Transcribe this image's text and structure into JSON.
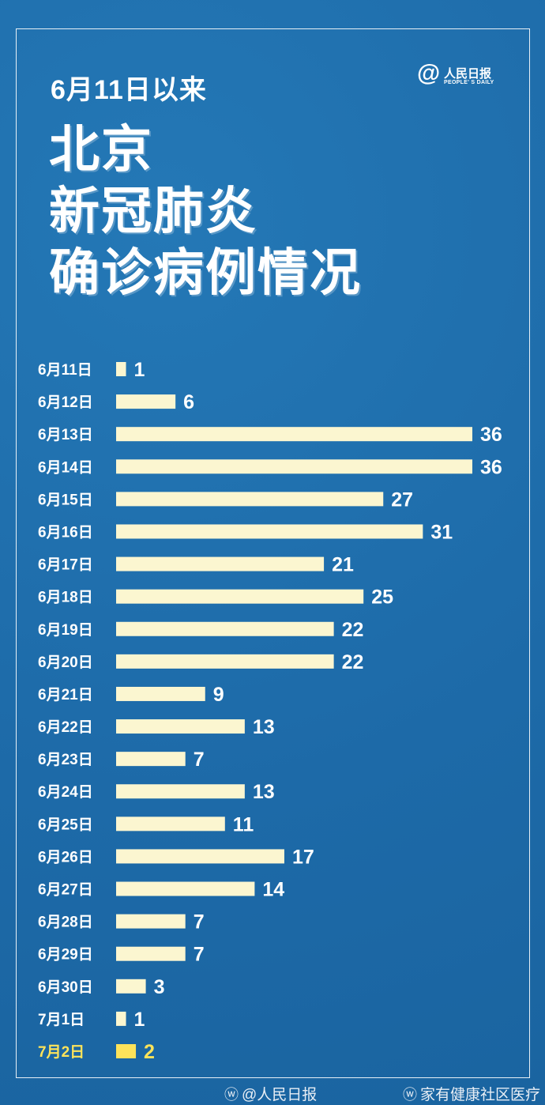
{
  "header": {
    "subtitle": "6月11日以来",
    "title_lines": [
      "北京",
      "新冠肺炎",
      "确诊病例情况"
    ]
  },
  "logo": {
    "cn": "人民日报",
    "en": "PEOPLE' S DAILY",
    "symbol": "@"
  },
  "footer": {
    "sources": [
      "@人民日报",
      "家有健康社区医疗"
    ],
    "icon": "weibo-icon"
  },
  "colors": {
    "background": "#1f6fae",
    "bar": "#fbf6d0",
    "highlight": "#fde35a",
    "text": "#ffffff"
  },
  "chart_data": {
    "type": "bar",
    "orientation": "horizontal",
    "categories": [
      "6月11日",
      "6月12日",
      "6月13日",
      "6月14日",
      "6月15日",
      "6月16日",
      "6月17日",
      "6月18日",
      "6月19日",
      "6月20日",
      "6月21日",
      "6月22日",
      "6月23日",
      "6月24日",
      "6月25日",
      "6月26日",
      "6月27日",
      "6月28日",
      "6月29日",
      "6月30日",
      "7月1日",
      "7月2日"
    ],
    "values": [
      1,
      6,
      36,
      36,
      27,
      31,
      21,
      25,
      22,
      22,
      9,
      13,
      7,
      13,
      11,
      17,
      14,
      7,
      7,
      3,
      1,
      2
    ],
    "highlight_index": 21,
    "grid": false,
    "axes_visible": false,
    "data_labels": true
  }
}
